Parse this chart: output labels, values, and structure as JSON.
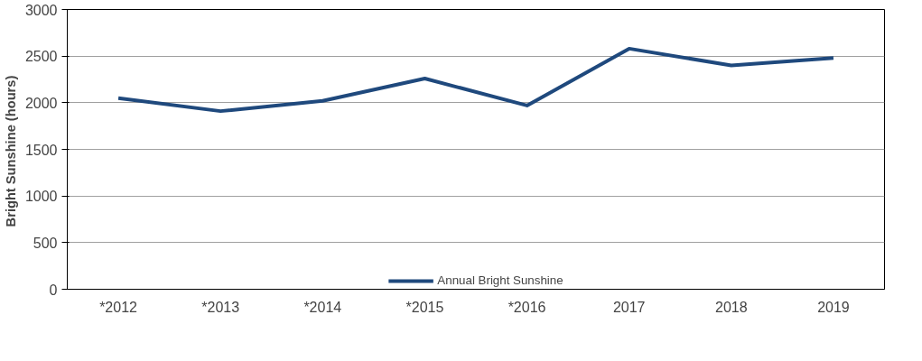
{
  "chart_data": {
    "type": "line",
    "ylabel": "Bright Sunshine  (hours)",
    "categories": [
      "*2012",
      "*2013",
      "*2014",
      "*2015",
      "*2016",
      "2017",
      "2018",
      "2019"
    ],
    "series": [
      {
        "name": "Annual Bright Sunshine",
        "color": "#1f497d",
        "values": [
          2050,
          1910,
          2020,
          2260,
          1970,
          2580,
          2400,
          2480
        ]
      }
    ],
    "ylim": [
      0,
      3000
    ],
    "yticks": [
      0,
      500,
      1000,
      1500,
      2000,
      2500,
      3000
    ],
    "grid": "y",
    "legend": "bottom",
    "marker": "none",
    "line_style": "solid"
  }
}
